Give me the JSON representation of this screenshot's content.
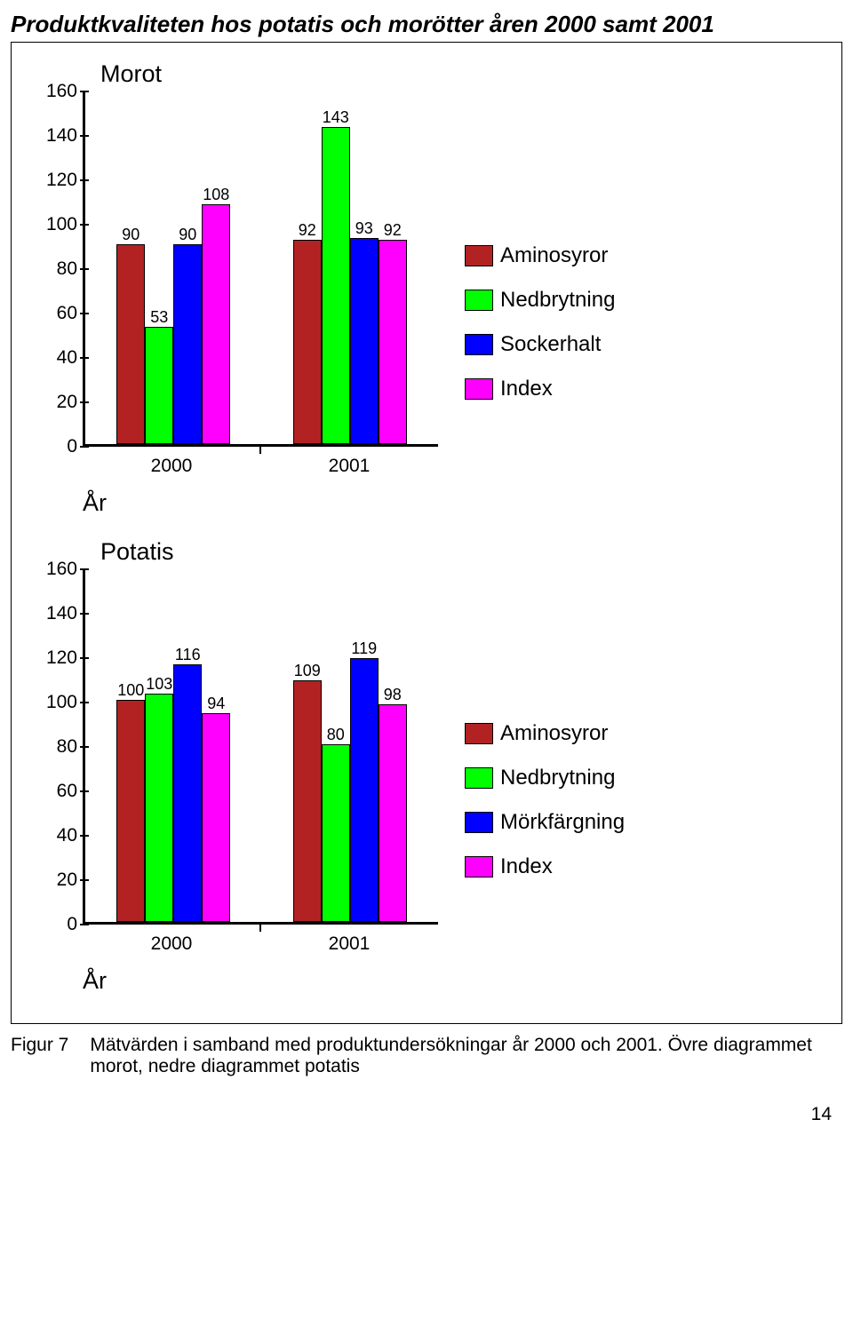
{
  "page_title": "Produktkvaliteten hos potatis och morötter åren 2000 samt 2001",
  "page_number": "14",
  "axis_title": "År",
  "ylim_max": 160,
  "ytick_step": 20,
  "series_colors": {
    "aminosyror": "#b22222",
    "nedbrytning": "#00ff00",
    "sockerhalt": "#0000ff",
    "morkfargning": "#0000ff",
    "index": "#ff00ff"
  },
  "charts": [
    {
      "title": "Morot",
      "categories": [
        "2000",
        "2001"
      ],
      "legend": [
        {
          "label": "Aminosyror",
          "color": "#b22222"
        },
        {
          "label": "Nedbrytning",
          "color": "#00ff00"
        },
        {
          "label": "Sockerhalt",
          "color": "#0000ff"
        },
        {
          "label": "Index",
          "color": "#ff00ff"
        }
      ],
      "groups": [
        {
          "bars": [
            {
              "value": 90,
              "color": "#b22222"
            },
            {
              "value": 53,
              "color": "#00ff00"
            },
            {
              "value": 90,
              "color": "#0000ff"
            },
            {
              "value": 108,
              "color": "#ff00ff"
            }
          ]
        },
        {
          "bars": [
            {
              "value": 92,
              "color": "#b22222"
            },
            {
              "value": 143,
              "color": "#00ff00"
            },
            {
              "value": 93,
              "color": "#0000ff"
            },
            {
              "value": 92,
              "color": "#ff00ff"
            }
          ]
        }
      ]
    },
    {
      "title": "Potatis",
      "categories": [
        "2000",
        "2001"
      ],
      "legend": [
        {
          "label": "Aminosyror",
          "color": "#b22222"
        },
        {
          "label": "Nedbrytning",
          "color": "#00ff00"
        },
        {
          "label": "Mörkfärgning",
          "color": "#0000ff"
        },
        {
          "label": "Index",
          "color": "#ff00ff"
        }
      ],
      "groups": [
        {
          "bars": [
            {
              "value": 100,
              "color": "#b22222"
            },
            {
              "value": 103,
              "color": "#00ff00"
            },
            {
              "value": 116,
              "color": "#0000ff"
            },
            {
              "value": 94,
              "color": "#ff00ff"
            }
          ]
        },
        {
          "bars": [
            {
              "value": 109,
              "color": "#b22222"
            },
            {
              "value": 80,
              "color": "#00ff00"
            },
            {
              "value": 119,
              "color": "#0000ff"
            },
            {
              "value": 98,
              "color": "#ff00ff"
            }
          ]
        }
      ]
    }
  ],
  "caption": {
    "figure_label": "Figur 7",
    "text": "Mätvärden i samband med produktundersökningar år 2000 och 2001. Övre diagrammet morot, nedre diagrammet potatis"
  }
}
